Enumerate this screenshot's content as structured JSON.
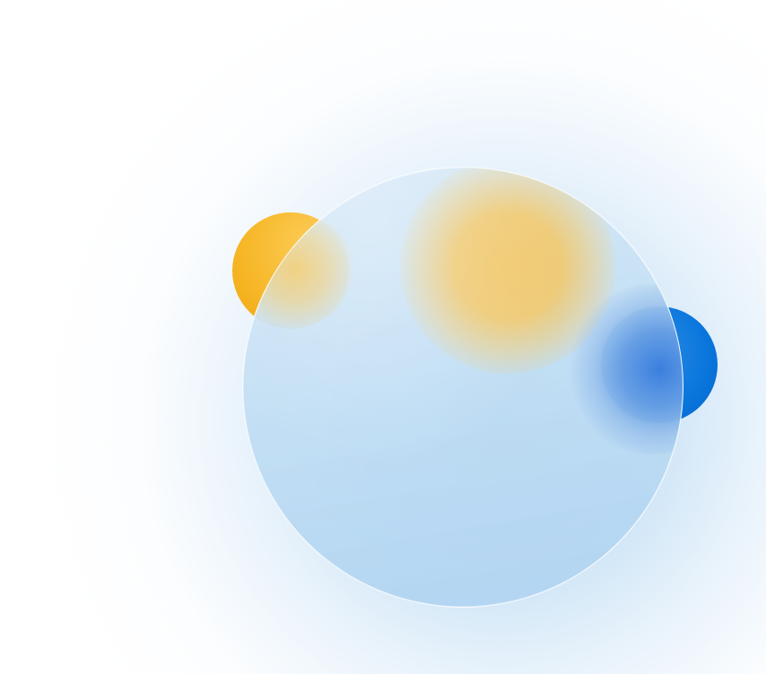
{
  "scene": {
    "colors": {
      "background": "#ffffff",
      "glow": "#b0d4f0",
      "glass": "#bedcf3",
      "glass_border": "#ffffff",
      "orb_yellow": "#f7b92c",
      "orb_blue": "#0a76dc",
      "blob_yellow": "#f2c869",
      "blob_blue": "#3078dc"
    },
    "elements": [
      "blue-radial-glow",
      "yellow-orb",
      "blue-orb",
      "frosted-glass-circle"
    ]
  }
}
